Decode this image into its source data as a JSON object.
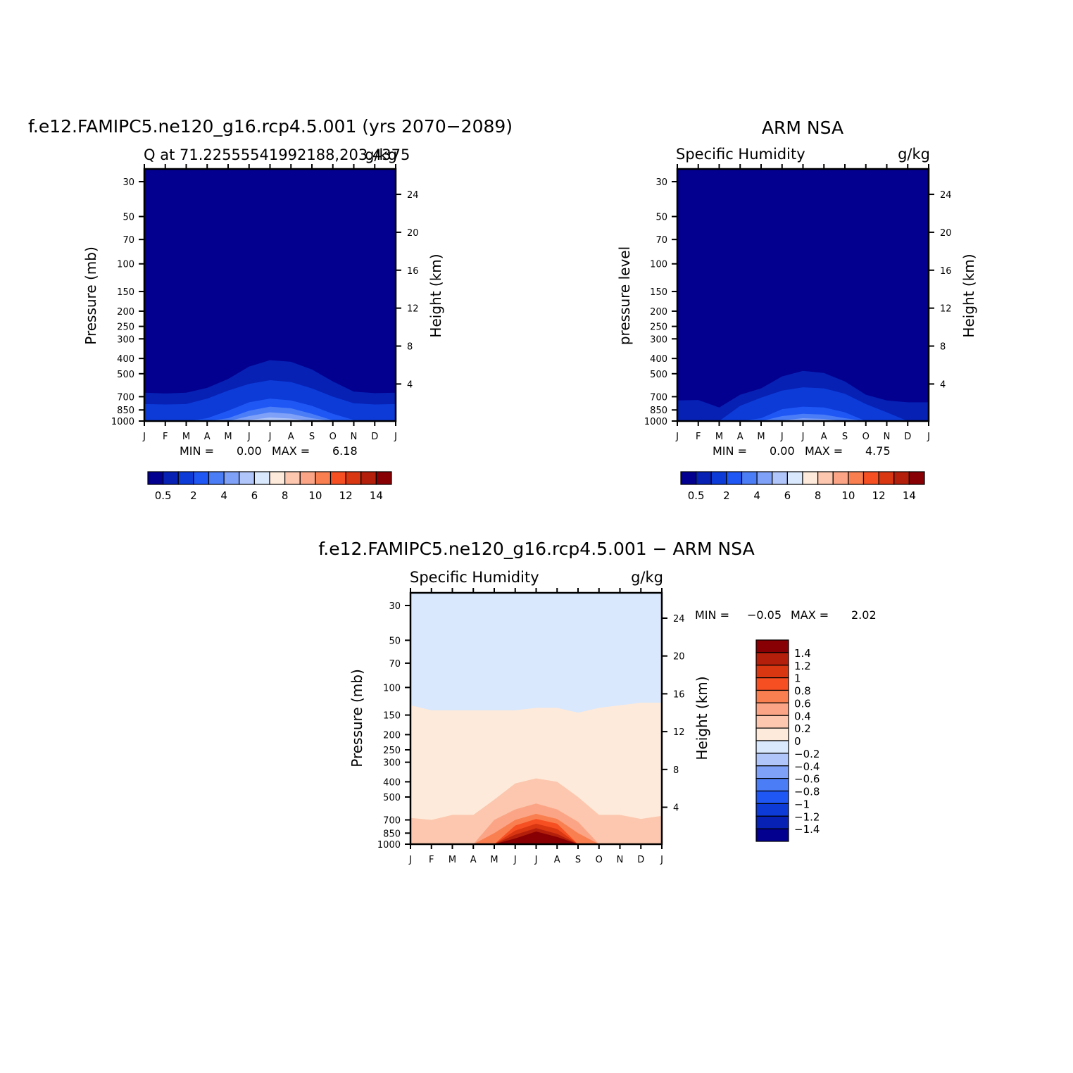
{
  "chart_data": [
    {
      "type": "heatmap",
      "title": "f.e12.FAMIPC5.ne120_g16.rcp4.5.001 (yrs 2070−2089)",
      "left_string": "Q at 71.22555541992188,203.4375",
      "right_string": "g/kg",
      "ylabel": "Pressure (mb)",
      "ylabel_right": "Height (km)",
      "x_months": [
        "J",
        "F",
        "M",
        "A",
        "M",
        "J",
        "J",
        "A",
        "S",
        "O",
        "N",
        "D",
        "J"
      ],
      "pressure_ticks": [
        "30",
        "50",
        "70",
        "100",
        "150",
        "200",
        "250",
        "300",
        "400",
        "500",
        "700",
        "850",
        "1000"
      ],
      "height_ticks": [
        "24",
        "20",
        "16",
        "12",
        "8",
        "4"
      ],
      "min_label": "MIN =",
      "min_value": "0.00",
      "max_label": "MAX =",
      "max_value": "6.18",
      "levels": [
        0.5,
        1,
        2,
        3,
        4,
        5,
        6,
        7,
        8,
        9,
        10,
        11,
        12,
        13,
        14
      ],
      "colorbar_labels": [
        "0.5",
        "2",
        "4",
        "6",
        "8",
        "10",
        "12",
        "14"
      ],
      "contours": [
        {
          "level": 0.5,
          "top_pressure": [
            660,
            668,
            660,
            615,
            540,
            450,
            410,
            420,
            470,
            560,
            650,
            665,
            660
          ]
        },
        {
          "level": 1,
          "top_pressure": [
            780,
            785,
            780,
            720,
            640,
            580,
            550,
            565,
            620,
            700,
            770,
            785,
            780
          ]
        },
        {
          "level": 2,
          "top_pressure": [
            1000,
            1000,
            1000,
            960,
            860,
            760,
            720,
            740,
            800,
            900,
            985,
            1000,
            1000
          ]
        },
        {
          "level": 3,
          "top_pressure": [
            1000,
            1000,
            1000,
            1000,
            960,
            860,
            810,
            830,
            900,
            990,
            1000,
            1000,
            1000
          ]
        },
        {
          "level": 4,
          "top_pressure": [
            1000,
            1000,
            1000,
            1000,
            1000,
            930,
            880,
            900,
            960,
            1000,
            1000,
            1000,
            1000
          ]
        },
        {
          "level": 5,
          "top_pressure": [
            1000,
            1000,
            1000,
            1000,
            1000,
            985,
            950,
            965,
            1000,
            1000,
            1000,
            1000,
            1000
          ]
        },
        {
          "level": 6,
          "top_pressure": [
            1000,
            1000,
            1000,
            1000,
            1000,
            1000,
            985,
            995,
            1000,
            1000,
            1000,
            1000,
            1000
          ]
        }
      ]
    },
    {
      "type": "heatmap",
      "title": "ARM NSA",
      "left_string": "Specific Humidity",
      "right_string": "g/kg",
      "ylabel": "pressure level",
      "ylabel_right": "Height (km)",
      "x_months": [
        "J",
        "F",
        "M",
        "A",
        "M",
        "J",
        "J",
        "A",
        "S",
        "O",
        "N",
        "D",
        "J"
      ],
      "pressure_ticks": [
        "30",
        "50",
        "70",
        "100",
        "150",
        "200",
        "250",
        "300",
        "400",
        "500",
        "700",
        "850",
        "1000"
      ],
      "height_ticks": [
        "24",
        "20",
        "16",
        "12",
        "8",
        "4"
      ],
      "min_label": "MIN =",
      "min_value": "0.00",
      "max_label": "MAX =",
      "max_value": "4.75",
      "levels": [
        0.5,
        1,
        2,
        3,
        4,
        5,
        6,
        7,
        8,
        9,
        10,
        11,
        12,
        13,
        14
      ],
      "colorbar_labels": [
        "0.5",
        "2",
        "4",
        "6",
        "8",
        "10",
        "12",
        "14"
      ],
      "contours": [
        {
          "level": 0.5,
          "top_pressure": [
            740,
            735,
            820,
            680,
            620,
            520,
            480,
            495,
            560,
            680,
            740,
            760,
            760
          ]
        },
        {
          "level": 1,
          "top_pressure": [
            1000,
            1000,
            1000,
            800,
            710,
            640,
            610,
            620,
            670,
            780,
            880,
            1000,
            1000
          ]
        },
        {
          "level": 2,
          "top_pressure": [
            1000,
            1000,
            1000,
            1000,
            960,
            840,
            810,
            820,
            880,
            1000,
            1000,
            1000,
            1000
          ]
        },
        {
          "level": 3,
          "top_pressure": [
            1000,
            1000,
            1000,
            1000,
            1000,
            930,
            900,
            910,
            960,
            1000,
            1000,
            1000,
            1000
          ]
        },
        {
          "level": 4,
          "top_pressure": [
            1000,
            1000,
            1000,
            1000,
            1000,
            990,
            960,
            970,
            1000,
            1000,
            1000,
            1000,
            1000
          ]
        }
      ]
    },
    {
      "type": "heatmap",
      "title": "f.e12.FAMIPC5.ne120_g16.rcp4.5.001 − ARM NSA",
      "left_string": "Specific Humidity",
      "right_string": "g/kg",
      "ylabel": "Pressure (mb)",
      "ylabel_right": "Height (km)",
      "x_months": [
        "J",
        "F",
        "M",
        "A",
        "M",
        "J",
        "J",
        "A",
        "S",
        "O",
        "N",
        "D",
        "J"
      ],
      "pressure_ticks": [
        "30",
        "50",
        "70",
        "100",
        "150",
        "200",
        "250",
        "300",
        "400",
        "500",
        "700",
        "850",
        "1000"
      ],
      "height_ticks": [
        "24",
        "20",
        "16",
        "12",
        "8",
        "4"
      ],
      "min_label": "MIN =",
      "min_value": "−0.05",
      "max_label": "MAX =",
      "max_value": "2.02",
      "levels": [
        -1.4,
        -1.2,
        -1,
        -0.8,
        -0.6,
        -0.4,
        -0.2,
        0,
        0.2,
        0.4,
        0.6,
        0.8,
        1,
        1.2,
        1.4
      ],
      "colorbar_labels": [
        "1.4",
        "1.2",
        "1",
        "0.8",
        "0.6",
        "0.4",
        "0.2",
        "0",
        "−0.2",
        "−0.4",
        "−0.6",
        "−0.8",
        "−1",
        "−1.2",
        "−1.4"
      ],
      "contours": [
        {
          "level": 0,
          "top_pressure": [
            130,
            140,
            140,
            140,
            140,
            140,
            135,
            135,
            145,
            135,
            130,
            125,
            125
          ]
        },
        {
          "level": 0.2,
          "top_pressure": [
            680,
            700,
            650,
            650,
            520,
            410,
            380,
            400,
            500,
            650,
            650,
            690,
            660
          ]
        },
        {
          "level": 0.4,
          "top_pressure": [
            1000,
            1000,
            1000,
            1000,
            700,
            600,
            550,
            600,
            720,
            1000,
            1000,
            1000,
            1000
          ]
        },
        {
          "level": 0.6,
          "top_pressure": [
            1000,
            1000,
            1000,
            1000,
            850,
            700,
            640,
            690,
            850,
            1000,
            1000,
            1000,
            1000
          ]
        },
        {
          "level": 0.8,
          "top_pressure": [
            1000,
            1000,
            1000,
            1000,
            1000,
            760,
            690,
            740,
            1000,
            1000,
            1000,
            1000,
            1000
          ]
        },
        {
          "level": 1,
          "top_pressure": [
            1000,
            1000,
            1000,
            1000,
            1000,
            820,
            740,
            800,
            1000,
            1000,
            1000,
            1000,
            1000
          ]
        },
        {
          "level": 1.2,
          "top_pressure": [
            1000,
            1000,
            1000,
            1000,
            1000,
            870,
            790,
            860,
            1000,
            1000,
            1000,
            1000,
            1000
          ]
        },
        {
          "level": 1.4,
          "top_pressure": [
            1000,
            1000,
            1000,
            1000,
            1000,
            920,
            830,
            900,
            1000,
            1000,
            1000,
            1000,
            1000
          ]
        }
      ]
    }
  ]
}
